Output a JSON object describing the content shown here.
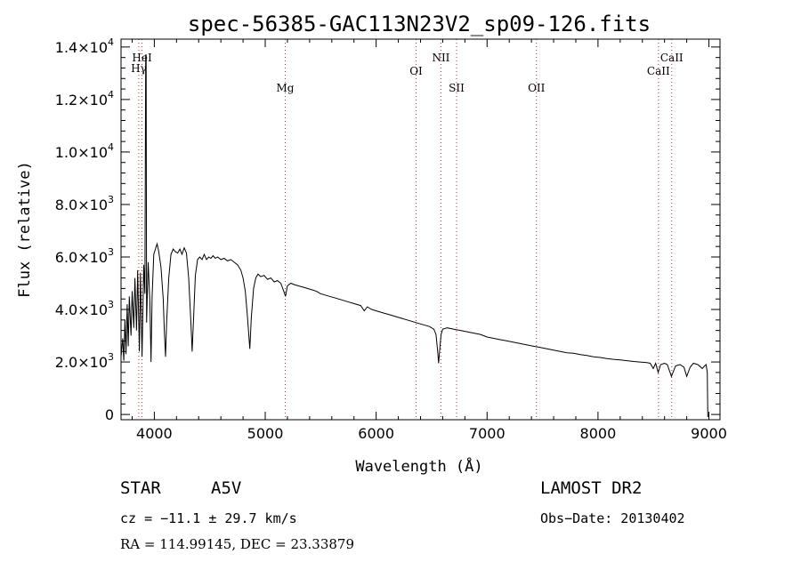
{
  "chart_data": {
    "type": "line",
    "title": "spec-56385-GAC113N23V2_sp09-126.fits",
    "xlabel": "Wavelength (Å)",
    "ylabel": "Flux (relative)",
    "xlim": [
      3700,
      9100
    ],
    "ylim": [
      -200,
      14300
    ],
    "x_ticks": [
      4000,
      5000,
      6000,
      7000,
      8000,
      9000
    ],
    "x_tick_labels": [
      "4000",
      "5000",
      "6000",
      "7000",
      "8000",
      "9000"
    ],
    "y_ticks": [
      0,
      2000,
      4000,
      6000,
      8000,
      10000,
      12000,
      14000
    ],
    "y_tick_labels": [
      {
        "mant": "0",
        "exp": ""
      },
      {
        "mant": "2.0×10",
        "exp": "3"
      },
      {
        "mant": "4.0×10",
        "exp": "3"
      },
      {
        "mant": "6.0×10",
        "exp": "3"
      },
      {
        "mant": "8.0×10",
        "exp": "3"
      },
      {
        "mant": "1.0×10",
        "exp": "4"
      },
      {
        "mant": "1.2×10",
        "exp": "4"
      },
      {
        "mant": "1.4×10",
        "exp": "4"
      }
    ],
    "grid": false,
    "line_color": "#000000",
    "marker_color": "#b03030",
    "line_markers": [
      {
        "label": "Hγ",
        "x": 3860,
        "label_y": 13050
      },
      {
        "label": "HeI",
        "x": 3889,
        "label_y": 13450
      },
      {
        "label": "Mg",
        "x": 5180,
        "label_y": 12300
      },
      {
        "label": "OI",
        "x": 6360,
        "label_y": 12950
      },
      {
        "label": "NII",
        "x": 6584,
        "label_y": 13450
      },
      {
        "label": "SII",
        "x": 6725,
        "label_y": 12300
      },
      {
        "label": "OII",
        "x": 7445,
        "label_y": 12300
      },
      {
        "label": "CaII",
        "x": 8545,
        "label_y": 12950
      },
      {
        "label": "CaII",
        "x": 8665,
        "label_y": 13450
      }
    ],
    "series": [
      {
        "points": [
          [
            3700,
            2200
          ],
          [
            3715,
            2900
          ],
          [
            3725,
            2050
          ],
          [
            3735,
            3600
          ],
          [
            3745,
            2300
          ],
          [
            3755,
            4200
          ],
          [
            3765,
            2600
          ],
          [
            3775,
            4500
          ],
          [
            3790,
            3000
          ],
          [
            3800,
            4700
          ],
          [
            3815,
            3300
          ],
          [
            3825,
            5200
          ],
          [
            3840,
            3200
          ],
          [
            3850,
            5500
          ],
          [
            3865,
            2400
          ],
          [
            3875,
            5400
          ],
          [
            3889,
            2200
          ],
          [
            3905,
            5700
          ],
          [
            3915,
            4600
          ],
          [
            3922,
            13700
          ],
          [
            3926,
            13700
          ],
          [
            3930,
            3500
          ],
          [
            3945,
            5800
          ],
          [
            3960,
            4300
          ],
          [
            3970,
            2000
          ],
          [
            3980,
            4500
          ],
          [
            3995,
            6100
          ],
          [
            4010,
            6300
          ],
          [
            4025,
            6500
          ],
          [
            4040,
            6200
          ],
          [
            4060,
            5600
          ],
          [
            4080,
            4400
          ],
          [
            4090,
            3200
          ],
          [
            4101,
            2200
          ],
          [
            4110,
            3400
          ],
          [
            4130,
            5200
          ],
          [
            4150,
            6100
          ],
          [
            4170,
            6300
          ],
          [
            4190,
            6200
          ],
          [
            4210,
            6150
          ],
          [
            4230,
            6300
          ],
          [
            4250,
            6100
          ],
          [
            4270,
            6350
          ],
          [
            4290,
            6150
          ],
          [
            4310,
            5200
          ],
          [
            4330,
            3500
          ],
          [
            4341,
            2400
          ],
          [
            4352,
            3500
          ],
          [
            4370,
            5300
          ],
          [
            4390,
            5900
          ],
          [
            4410,
            6000
          ],
          [
            4430,
            5900
          ],
          [
            4450,
            6100
          ],
          [
            4470,
            5900
          ],
          [
            4490,
            6000
          ],
          [
            4510,
            5950
          ],
          [
            4530,
            6050
          ],
          [
            4550,
            5950
          ],
          [
            4570,
            6000
          ],
          [
            4600,
            5900
          ],
          [
            4630,
            5950
          ],
          [
            4660,
            5850
          ],
          [
            4690,
            5900
          ],
          [
            4720,
            5800
          ],
          [
            4750,
            5700
          ],
          [
            4780,
            5500
          ],
          [
            4800,
            5200
          ],
          [
            4820,
            4700
          ],
          [
            4840,
            3700
          ],
          [
            4861,
            2500
          ],
          [
            4875,
            3700
          ],
          [
            4895,
            4800
          ],
          [
            4915,
            5200
          ],
          [
            4935,
            5350
          ],
          [
            4960,
            5250
          ],
          [
            4990,
            5300
          ],
          [
            5020,
            5150
          ],
          [
            5050,
            5200
          ],
          [
            5080,
            5050
          ],
          [
            5110,
            5100
          ],
          [
            5140,
            5000
          ],
          [
            5167,
            4700
          ],
          [
            5183,
            4500
          ],
          [
            5200,
            4900
          ],
          [
            5230,
            5000
          ],
          [
            5260,
            4950
          ],
          [
            5300,
            4900
          ],
          [
            5340,
            4850
          ],
          [
            5380,
            4800
          ],
          [
            5420,
            4750
          ],
          [
            5460,
            4700
          ],
          [
            5500,
            4600
          ],
          [
            5540,
            4550
          ],
          [
            5580,
            4500
          ],
          [
            5620,
            4450
          ],
          [
            5660,
            4400
          ],
          [
            5700,
            4350
          ],
          [
            5740,
            4300
          ],
          [
            5780,
            4250
          ],
          [
            5820,
            4200
          ],
          [
            5860,
            4150
          ],
          [
            5893,
            3950
          ],
          [
            5920,
            4100
          ],
          [
            5960,
            4000
          ],
          [
            6000,
            3950
          ],
          [
            6040,
            3900
          ],
          [
            6080,
            3850
          ],
          [
            6120,
            3800
          ],
          [
            6160,
            3750
          ],
          [
            6200,
            3700
          ],
          [
            6240,
            3650
          ],
          [
            6280,
            3600
          ],
          [
            6320,
            3550
          ],
          [
            6360,
            3500
          ],
          [
            6400,
            3450
          ],
          [
            6440,
            3400
          ],
          [
            6480,
            3350
          ],
          [
            6520,
            3250
          ],
          [
            6540,
            3050
          ],
          [
            6555,
            2400
          ],
          [
            6563,
            1950
          ],
          [
            6572,
            2400
          ],
          [
            6585,
            3050
          ],
          [
            6600,
            3250
          ],
          [
            6640,
            3300
          ],
          [
            6700,
            3250
          ],
          [
            6760,
            3200
          ],
          [
            6820,
            3150
          ],
          [
            6880,
            3100
          ],
          [
            6940,
            3050
          ],
          [
            7000,
            2950
          ],
          [
            7060,
            2900
          ],
          [
            7120,
            2850
          ],
          [
            7180,
            2800
          ],
          [
            7240,
            2750
          ],
          [
            7300,
            2700
          ],
          [
            7360,
            2650
          ],
          [
            7420,
            2600
          ],
          [
            7480,
            2550
          ],
          [
            7540,
            2500
          ],
          [
            7600,
            2450
          ],
          [
            7660,
            2400
          ],
          [
            7720,
            2350
          ],
          [
            7780,
            2330
          ],
          [
            7840,
            2280
          ],
          [
            7900,
            2250
          ],
          [
            7960,
            2200
          ],
          [
            8020,
            2170
          ],
          [
            8080,
            2130
          ],
          [
            8140,
            2100
          ],
          [
            8200,
            2080
          ],
          [
            8260,
            2050
          ],
          [
            8320,
            2020
          ],
          [
            8380,
            2000
          ],
          [
            8440,
            1980
          ],
          [
            8470,
            1950
          ],
          [
            8498,
            1750
          ],
          [
            8520,
            1950
          ],
          [
            8542,
            1600
          ],
          [
            8565,
            1900
          ],
          [
            8600,
            1950
          ],
          [
            8625,
            1900
          ],
          [
            8662,
            1450
          ],
          [
            8700,
            1850
          ],
          [
            8740,
            1900
          ],
          [
            8775,
            1800
          ],
          [
            8800,
            1450
          ],
          [
            8830,
            1800
          ],
          [
            8860,
            1950
          ],
          [
            8900,
            1900
          ],
          [
            8940,
            1750
          ],
          [
            8960,
            1850
          ],
          [
            8975,
            1900
          ],
          [
            8985,
            1600
          ],
          [
            8990,
            -100
          ]
        ]
      }
    ]
  },
  "footer": {
    "object_type": "STAR",
    "spectral_class": "A5V",
    "survey": "LAMOST DR2",
    "cz": "cz = −11.1 ± 29.7 km/s",
    "obs_date": "Obs−Date: 20130402",
    "radec": "RA = 114.99145, DEC =  23.33879"
  }
}
